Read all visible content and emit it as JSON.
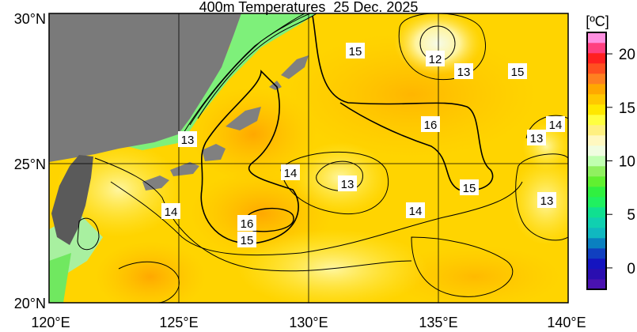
{
  "title": "400m Temperatures  25 Dec. 2025",
  "colorbar": {
    "unit": "[ºC]",
    "range": [
      -2,
      22
    ],
    "ticks": [
      "20",
      "15",
      "10",
      "5",
      "0"
    ],
    "colors": [
      "#4a12b0",
      "#2a0eb0",
      "#1414c0",
      "#1040c0",
      "#0a80c0",
      "#10b8c0",
      "#10d0b0",
      "#10e090",
      "#20f060",
      "#30f040",
      "#60f030",
      "#90f060",
      "#c0ffb0",
      "#f0fde0",
      "#fff8c0",
      "#fff080",
      "#ffff40",
      "#ffe800",
      "#ffc800",
      "#ffa800",
      "#ff8020",
      "#ff5020",
      "#ff2020",
      "#ff4080",
      "#ff90e0"
    ]
  },
  "axes": {
    "lat_labels": [
      "30°N",
      "25°N",
      "20°N"
    ],
    "lon_labels": [
      "120°E",
      "125°E",
      "130°E",
      "135°E",
      "140°E"
    ]
  },
  "contour_labels": [
    "15",
    "12",
    "13",
    "15",
    "16",
    "14",
    "13",
    "13",
    "14",
    "13",
    "15",
    "14",
    "14",
    "13",
    "16",
    "15"
  ]
}
